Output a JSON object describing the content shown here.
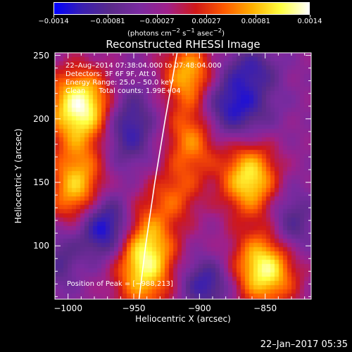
{
  "chart_data": {
    "type": "heatmap",
    "title": "Reconstructed RHESSI Image",
    "xlabel": "Heliocentric X (arcsec)",
    "ylabel": "Heliocentric Y (arcsec)",
    "xlim": [
      -1010,
      -815
    ],
    "ylim": [
      58,
      252
    ],
    "x_ticks": [
      "−1000",
      "−950",
      "−900",
      "−850"
    ],
    "x_tick_values": [
      -1000,
      -950,
      -900,
      -850
    ],
    "y_ticks": [
      "100",
      "150",
      "200",
      "250"
    ],
    "y_tick_values": [
      100,
      150,
      200,
      250
    ],
    "colorbar": {
      "range": [
        -0.0014,
        0.0014
      ],
      "ticks": [
        "−0.0014",
        "−0.00081",
        "−0.00027",
        "0.00027",
        "0.00081",
        "0.0014"
      ],
      "tick_values": [
        -0.0014,
        -0.00081,
        -0.00027,
        0.00027,
        0.00081,
        0.0014
      ],
      "units_html": "(photons cm<sup>−2</sup> s<sup>−1</sup> asec<sup>−2</sup>)",
      "colors": [
        "#0000ff",
        "#3a1fb0",
        "#5a2a8a",
        "#7a2aa0",
        "#a0208a",
        "#d01818",
        "#ff5a00",
        "#ffb000",
        "#ffff40",
        "#ffffff"
      ]
    },
    "annotations": [
      "22–Aug–2014 07:38:04.000 to 07:48:04.000",
      "Detectors: 3F 6F 9F, Att 0",
      "Energy Range: 25.0 – 50.0 keV",
      "Clean      Total counts: 1.99E+04"
    ],
    "peak_label": "Position of Peak = [−988,213]",
    "peak": [
      -988,
      213
    ],
    "limb_points": [
      [
        -946,
        58
      ],
      [
        -941,
        100
      ],
      [
        -934,
        150
      ],
      [
        -926,
        200
      ],
      [
        -917,
        252
      ]
    ],
    "sources": [
      {
        "x": -990,
        "y": 210,
        "sx": 18,
        "sy": 20,
        "amp": 1.0
      },
      {
        "x": -942,
        "y": 92,
        "sx": 16,
        "sy": 28,
        "amp": 1.0
      },
      {
        "x": -993,
        "y": 140,
        "sx": 15,
        "sy": 28,
        "amp": 0.85
      },
      {
        "x": -862,
        "y": 153,
        "sx": 15,
        "sy": 20,
        "amp": 0.85
      },
      {
        "x": -850,
        "y": 82,
        "sx": 17,
        "sy": 20,
        "amp": 0.95
      },
      {
        "x": -908,
        "y": 235,
        "sx": 14,
        "sy": 18,
        "amp": 0.7
      },
      {
        "x": -906,
        "y": 185,
        "sx": 14,
        "sy": 22,
        "amp": 0.6
      },
      {
        "x": -918,
        "y": 140,
        "sx": 13,
        "sy": 16,
        "amp": 0.35
      },
      {
        "x": -975,
        "y": 115,
        "sx": 18,
        "sy": 18,
        "amp": -0.9
      },
      {
        "x": -955,
        "y": 195,
        "sx": 14,
        "sy": 22,
        "amp": -0.55
      },
      {
        "x": -875,
        "y": 210,
        "sx": 20,
        "sy": 18,
        "amp": -0.6
      },
      {
        "x": -895,
        "y": 70,
        "sx": 14,
        "sy": 14,
        "amp": -0.5
      },
      {
        "x": -830,
        "y": 115,
        "sx": 12,
        "sy": 20,
        "amp": -0.4
      },
      {
        "x": -860,
        "y": 240,
        "sx": 14,
        "sy": 12,
        "amp": -0.35
      },
      {
        "x": -1005,
        "y": 90,
        "sx": 10,
        "sy": 18,
        "amp": -0.35
      }
    ]
  },
  "footer": {
    "date": "22–Jan–2017 05:35"
  }
}
